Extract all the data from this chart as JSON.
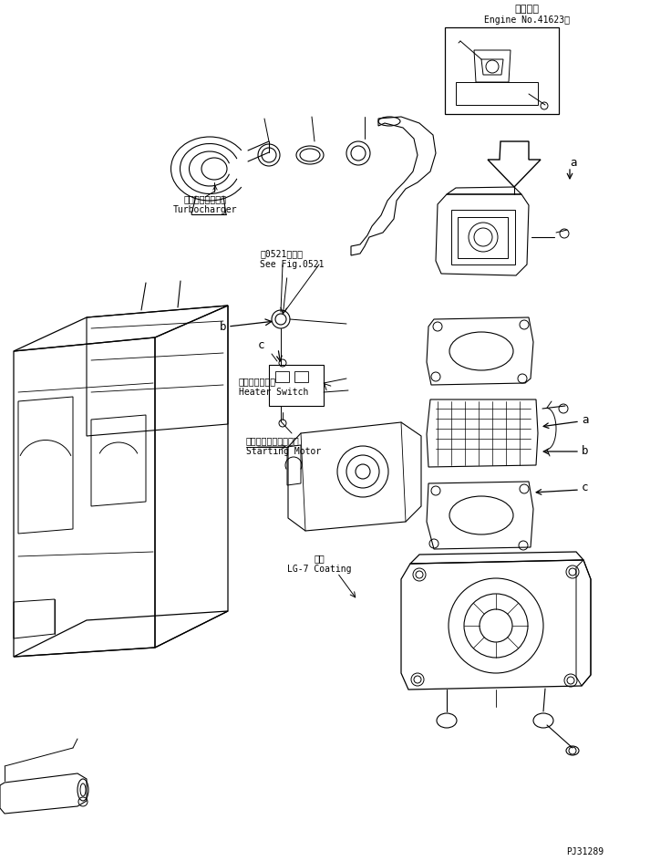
{
  "title_jp": "適用号機",
  "title_en": "Engine No.41623～",
  "bg_color": "#ffffff",
  "line_color": "#000000",
  "fig_width": 7.13,
  "fig_height": 9.44,
  "dpi": 100,
  "part_number": "PJ31289",
  "labels": {
    "turbocharger_jp": "ターボチャージャ",
    "turbocharger_en": "Turbocharger",
    "see_fig_jp": "第0521図参照",
    "see_fig_en": "See Fig.0521",
    "heater_switch_jp": "ヒータスイッチ",
    "heater_switch_en": "Heater Switch",
    "starting_motor_jp": "スターティングモータ",
    "starting_motor_en": "Starting Motor",
    "coating_jp": "塗布",
    "coating_en": "LG-7 Coating"
  }
}
